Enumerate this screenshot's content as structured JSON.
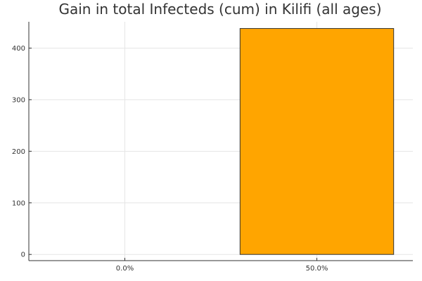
{
  "chart_data": {
    "type": "bar",
    "title": "Gain in total Infecteds (cum) in Kilifi (all ages)",
    "categories": [
      "0.0%",
      "50.0%"
    ],
    "values": [
      0,
      438
    ],
    "xlabel": "",
    "ylabel": "",
    "ylim": [
      -12,
      451
    ],
    "yticks": [
      0,
      100,
      200,
      300,
      400
    ],
    "grid": true,
    "legend": "none",
    "colors": {
      "bar_fill": "#FFA500",
      "bar_stroke": "#333333",
      "grid": "#E5E5E5",
      "axis": "#333333"
    }
  }
}
